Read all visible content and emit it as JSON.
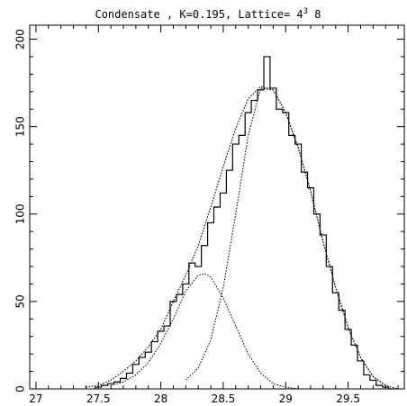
{
  "chart_data": {
    "type": "line",
    "title": "Condensate , K=0.195, Lattice= 4",
    "title_sup": "3",
    "title_suffix": " 8",
    "xlabel": "",
    "ylabel": "",
    "xlim": [
      26.95,
      29.95
    ],
    "ylim": [
      0,
      208
    ],
    "x_ticks": [
      27,
      27.5,
      28,
      28.5,
      29,
      29.5
    ],
    "x_tick_labels": [
      "27",
      "27.5",
      "28",
      "28.5",
      "29",
      "29.5"
    ],
    "y_ticks": [
      0,
      50,
      100,
      150,
      200
    ],
    "y_tick_labels": [
      "0",
      "50",
      "100",
      "150",
      "200"
    ],
    "grid": false,
    "series": [
      {
        "style": "histogram-step",
        "x": [
          27.5,
          27.55,
          27.6,
          27.65,
          27.7,
          27.75,
          27.8,
          27.85,
          27.9,
          27.95,
          28.0,
          28.05,
          28.1,
          28.15,
          28.2,
          28.25,
          28.3,
          28.35,
          28.4,
          28.45,
          28.5,
          28.55,
          28.6,
          28.65,
          28.7,
          28.75,
          28.8,
          28.85,
          28.9,
          28.95,
          29.0,
          29.05,
          29.1,
          29.15,
          29.2,
          29.25,
          29.3,
          29.35,
          29.4,
          29.45,
          29.5,
          29.55,
          29.6,
          29.65,
          29.7,
          29.75,
          29.8,
          29.85
        ],
        "values": [
          1,
          2,
          3,
          4,
          6,
          9,
          14,
          18,
          21,
          27,
          33,
          36,
          50,
          54,
          60,
          72,
          70,
          82,
          95,
          104,
          112,
          125,
          140,
          145,
          158,
          165,
          171,
          190,
          172,
          160,
          158,
          145,
          140,
          124,
          115,
          100,
          88,
          70,
          55,
          45,
          34,
          25,
          16,
          8,
          5,
          2,
          1,
          0
        ]
      },
      {
        "style": "dotted-fit-total",
        "x": [
          27.4,
          27.5,
          27.6,
          27.7,
          27.8,
          27.9,
          28.0,
          28.1,
          28.2,
          28.3,
          28.4,
          28.5,
          28.6,
          28.7,
          28.8,
          28.9,
          29.0,
          29.1,
          29.2,
          29.3,
          29.4,
          29.5,
          29.6,
          29.7,
          29.8
        ],
        "values": [
          1,
          2,
          5,
          10,
          16,
          24,
          34,
          50,
          65,
          82,
          104,
          127,
          149,
          166,
          173,
          171,
          158,
          138,
          113,
          84,
          58,
          35,
          18,
          7,
          2
        ]
      },
      {
        "style": "dotted-component",
        "x": [
          27.6,
          27.7,
          27.8,
          27.9,
          28.0,
          28.1,
          28.2,
          28.3,
          28.35,
          28.4,
          28.5,
          28.6,
          28.7,
          28.8,
          28.9,
          29.0,
          29.1
        ],
        "values": [
          2,
          4,
          8,
          15,
          26,
          40,
          56,
          65,
          66,
          64,
          52,
          36,
          20,
          9,
          3,
          1,
          0
        ]
      },
      {
        "style": "dotted-component",
        "x": [
          28.2,
          28.3,
          28.4,
          28.5,
          28.6,
          28.7,
          28.8,
          28.9,
          29.0,
          29.1,
          29.2,
          29.3,
          29.4,
          29.5,
          29.6,
          29.7,
          29.8,
          29.9
        ],
        "values": [
          5,
          12,
          28,
          58,
          100,
          145,
          172,
          171,
          158,
          138,
          113,
          84,
          58,
          35,
          18,
          7,
          2,
          0
        ]
      }
    ]
  }
}
